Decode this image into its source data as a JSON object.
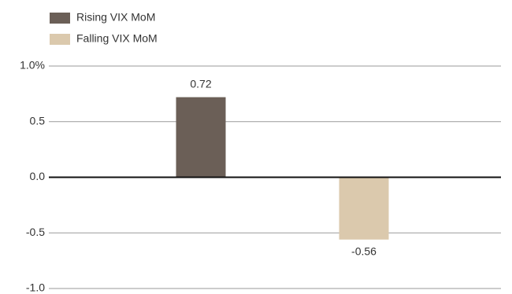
{
  "chart_data": {
    "type": "bar",
    "categories": [
      null,
      null
    ],
    "series": [
      {
        "name": "Rising VIX MoM",
        "color": "#6b5f57",
        "values": [
          0.72,
          null
        ]
      },
      {
        "name": "Falling VIX MoM",
        "color": "#dbc9ad",
        "values": [
          null,
          -0.56
        ]
      }
    ],
    "ylim": [
      -1.0,
      1.0
    ],
    "yticks": [
      {
        "value": 1.0,
        "label": "1.0%"
      },
      0.5,
      {
        "value": 0.0,
        "label": "0.0"
      },
      -0.5,
      {
        "value": -1.0,
        "label": "-1.0"
      }
    ],
    "grid": true
  }
}
